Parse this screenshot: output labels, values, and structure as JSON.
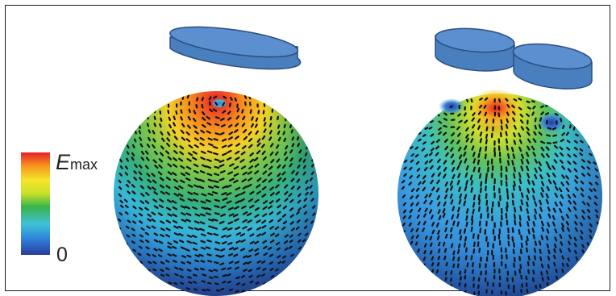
{
  "colorbar": {
    "max_label_letter": "E",
    "max_label_subscript": "max",
    "min_label": "0",
    "colors": [
      "#2b3a9e",
      "#2e7fd8",
      "#3fc1d8",
      "#39b54a",
      "#c8e02a",
      "#f7e52b",
      "#f7941d",
      "#e8202a"
    ]
  },
  "coil_color": "#4a7fbf",
  "coil_top_color": "#5b8fd0",
  "coil_edge_color": "#2b4f80",
  "panels": [
    {
      "name": "single-coil",
      "coil_count": 1,
      "hotspot": "top"
    },
    {
      "name": "figure-eight-coil",
      "coil_count": 2,
      "hotspot": "upper-center"
    }
  ]
}
